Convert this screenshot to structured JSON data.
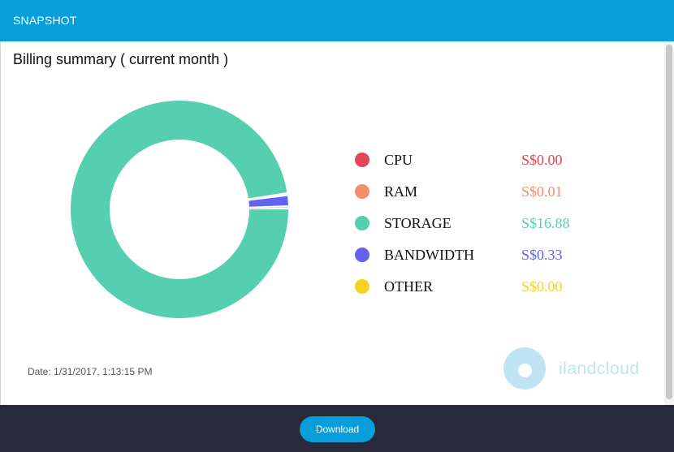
{
  "header": {
    "title": "SNAPSHOT"
  },
  "main": {
    "title": "Billing summary ( current month )",
    "date": "Date: 1/31/2017, 1:13:15 PM",
    "logo_text": "ilandcloud"
  },
  "legend": [
    {
      "label": "CPU",
      "value": "S$0.00",
      "color": "#e2455a"
    },
    {
      "label": "RAM",
      "value": "S$0.01",
      "color": "#f48e6c"
    },
    {
      "label": "STORAGE",
      "value": "S$16.88",
      "color": "#56cfb1"
    },
    {
      "label": "BANDWIDTH",
      "value": "S$0.33",
      "color": "#6363f2"
    },
    {
      "label": "OTHER",
      "value": "S$0.00",
      "color": "#f5d325"
    }
  ],
  "chart_data": {
    "type": "pie",
    "categories": [
      "CPU",
      "RAM",
      "STORAGE",
      "BANDWIDTH",
      "OTHER"
    ],
    "values": [
      0.0,
      0.01,
      16.88,
      0.33,
      0.0
    ],
    "colors": [
      "#e2455a",
      "#f48e6c",
      "#56cfb1",
      "#6363f2",
      "#f5d325"
    ],
    "title": "",
    "donut": true,
    "legend": "right"
  },
  "footer": {
    "download_label": "Download"
  }
}
